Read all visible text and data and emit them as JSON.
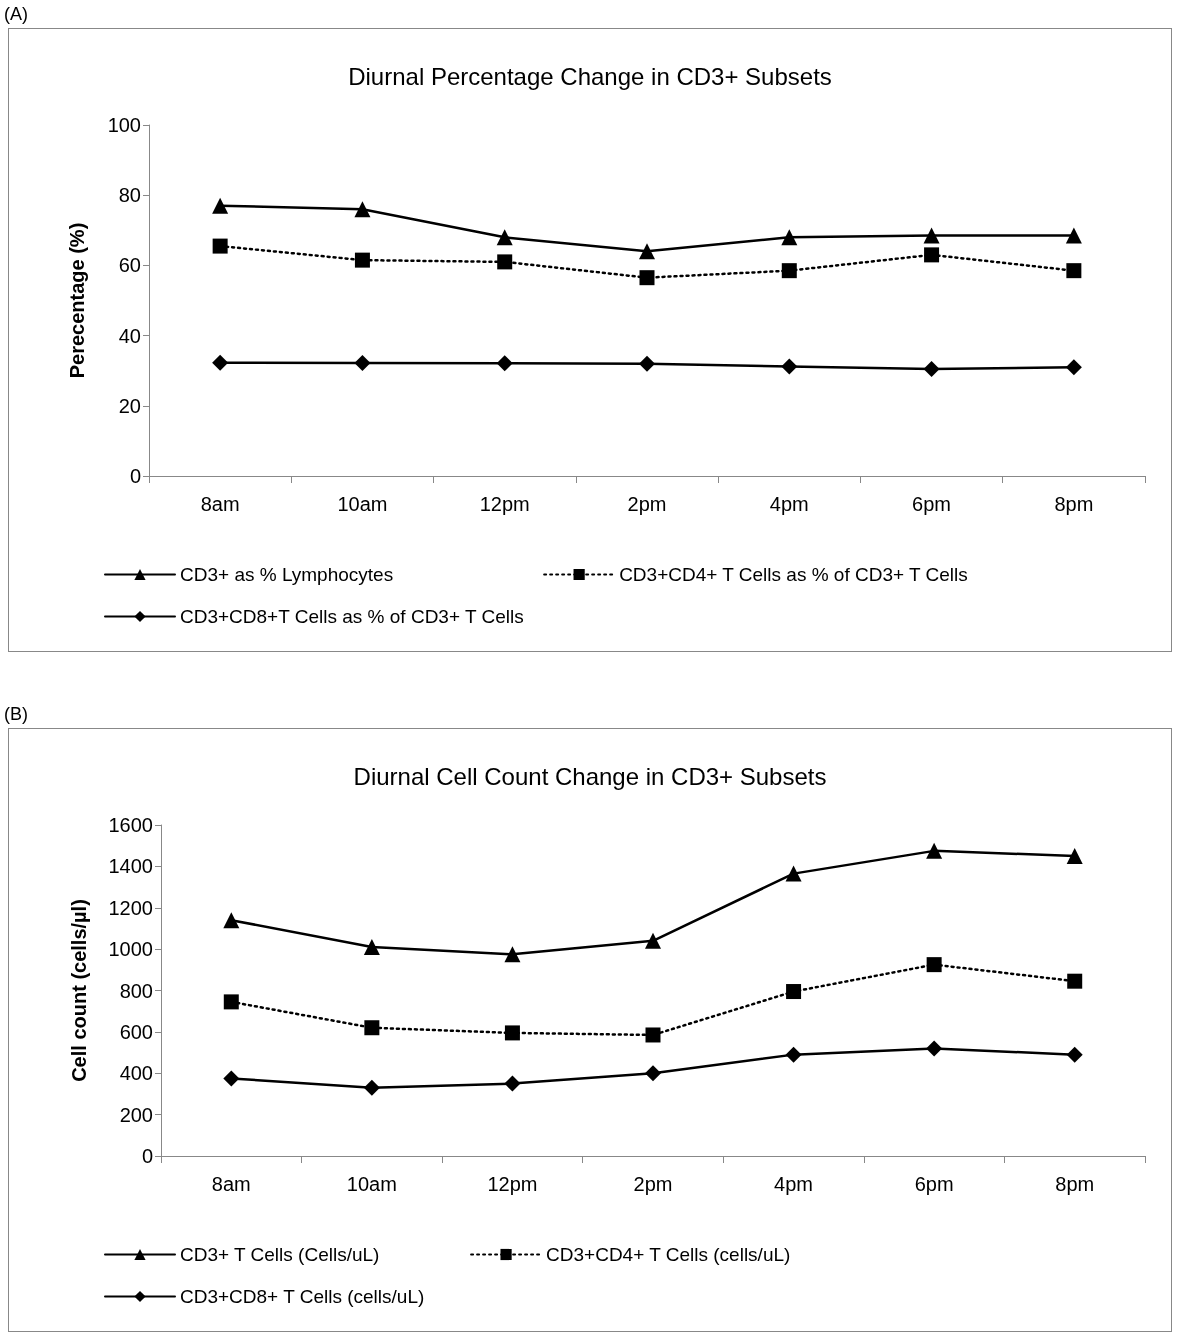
{
  "chart_data": [
    {
      "type": "line",
      "title": "Diurnal Percentage Change in CD3+ Subsets",
      "ylabel": "Perecentage (%)",
      "annotations": [
        "(A)"
      ],
      "categories": [
        "8am",
        "10am",
        "12pm",
        "2pm",
        "4pm",
        "6pm",
        "8pm"
      ],
      "ylim": [
        0,
        100
      ],
      "yticks": [
        0,
        20,
        40,
        60,
        80,
        100
      ],
      "legend": "bottom",
      "series": [
        {
          "name": "CD3+ as % Lymphocytes",
          "color": "#000000",
          "marker": "triangle",
          "line_style": "solid",
          "values": [
            77,
            76,
            68,
            64,
            68,
            68.5,
            68.5
          ]
        },
        {
          "name": "CD3+CD4+ T Cells as % of CD3+ T Cells",
          "color": "#000000",
          "marker": "square",
          "line_style": "dotted",
          "values": [
            65.5,
            61.5,
            61,
            56.5,
            58.5,
            63,
            58.5
          ]
        },
        {
          "name": "CD3+CD8+T Cells as % of CD3+ T Cells",
          "color": "#000000",
          "marker": "diamond",
          "line_style": "solid",
          "values": [
            32.3,
            32.2,
            32.1,
            32,
            31.2,
            30.5,
            31
          ]
        }
      ]
    },
    {
      "type": "line",
      "title": "Diurnal Cell Count Change in CD3+ Subsets",
      "ylabel": "Cell count (cells/µl)",
      "annotations": [
        "(B)"
      ],
      "categories": [
        "8am",
        "10am",
        "12pm",
        "2pm",
        "4pm",
        "6pm",
        "8pm"
      ],
      "ylim": [
        0,
        1600
      ],
      "yticks": [
        0,
        200,
        400,
        600,
        800,
        1000,
        1200,
        1400,
        1600
      ],
      "legend": "bottom",
      "series": [
        {
          "name": "CD3+ T Cells (Cells/uL)",
          "color": "#000000",
          "marker": "triangle",
          "line_style": "solid",
          "values": [
            1140,
            1010,
            975,
            1040,
            1365,
            1475,
            1450
          ]
        },
        {
          "name": "CD3+CD4+ T Cells (cells/uL)",
          "color": "#000000",
          "marker": "square",
          "line_style": "dotted",
          "values": [
            745,
            620,
            595,
            585,
            795,
            925,
            845
          ]
        },
        {
          "name": "CD3+CD8+ T Cells (cells/uL)",
          "color": "#000000",
          "marker": "diamond",
          "line_style": "solid",
          "values": [
            375,
            330,
            350,
            400,
            490,
            520,
            490
          ]
        }
      ]
    }
  ]
}
